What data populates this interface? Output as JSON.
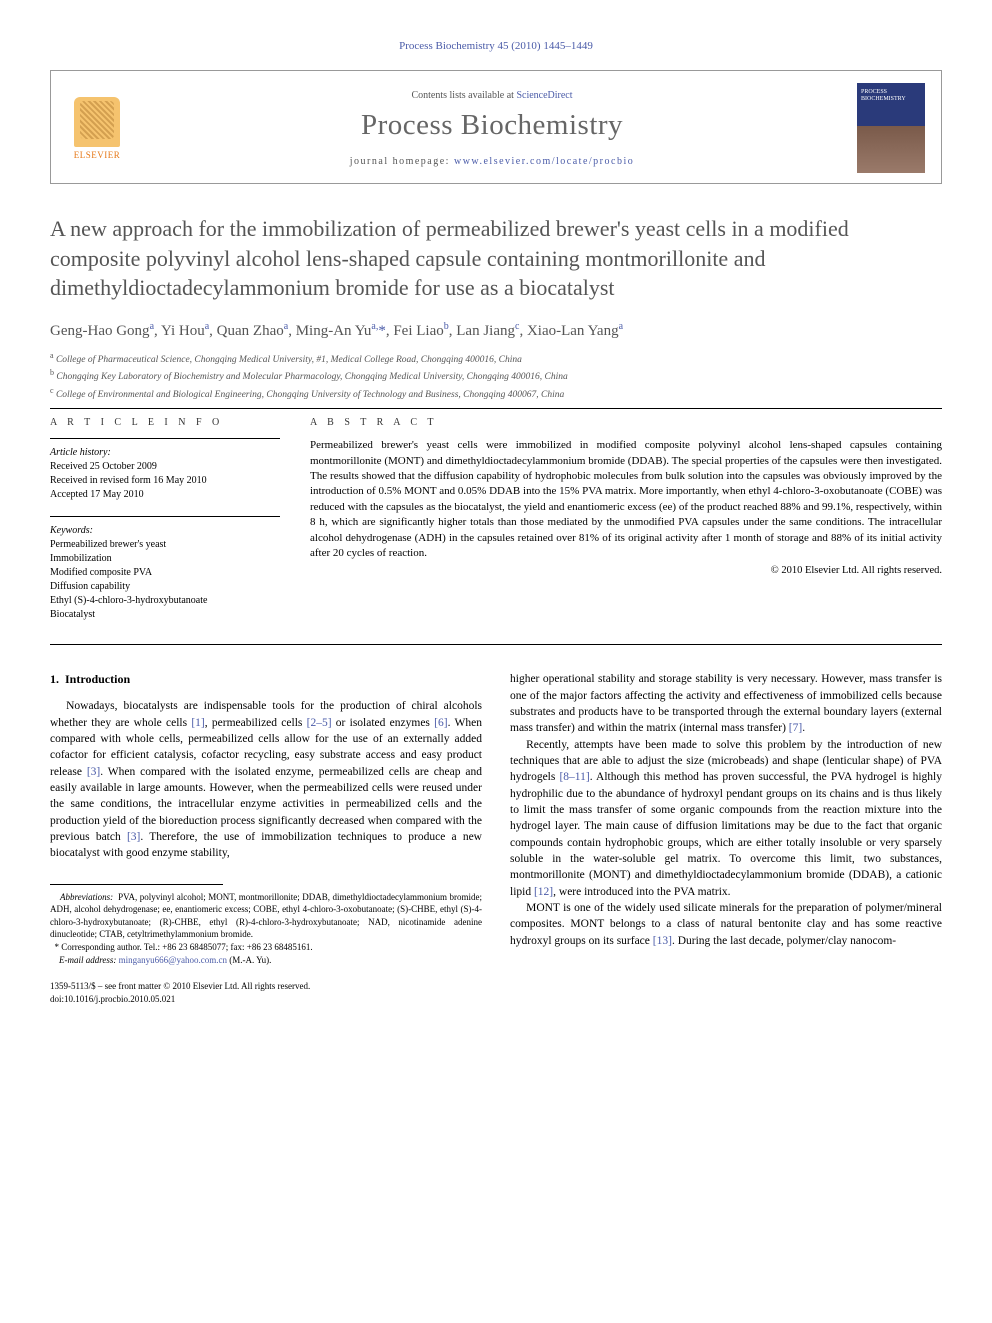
{
  "citation": "Process Biochemistry 45 (2010) 1445–1449",
  "header": {
    "contents_prefix": "Contents lists available at ",
    "contents_link": "ScienceDirect",
    "journal": "Process Biochemistry",
    "homepage_prefix": "journal homepage: ",
    "homepage_url": "www.elsevier.com/locate/procbio",
    "publisher_label": "ELSEVIER",
    "cover_caption": "PROCESS BIOCHEMISTRY"
  },
  "title": "A new approach for the immobilization of permeabilized brewer's yeast cells in a modified composite polyvinyl alcohol lens-shaped capsule containing montmorillonite and dimethyldioctadecylammonium bromide for use as a biocatalyst",
  "authors_html": "Geng-Hao Gong<sup>a</sup>, Yi Hou<sup>a</sup>, Quan Zhao<sup>a</sup>, Ming-An Yu<sup>a,</sup><span class='star'>*</span>, Fei Liao<sup>b</sup>, Lan Jiang<sup>c</sup>, Xiao-Lan Yang<sup>a</sup>",
  "affiliations": {
    "a": "College of Pharmaceutical Science, Chongqing Medical University, #1, Medical College Road, Chongqing 400016, China",
    "b": "Chongqing Key Laboratory of Biochemistry and Molecular Pharmacology, Chongqing Medical University, Chongqing 400016, China",
    "c": "College of Environmental and Biological Engineering, Chongqing University of Technology and Business, Chongqing 400067, China"
  },
  "info": {
    "head": "A R T I C L E   I N F O",
    "history_head": "Article history:",
    "history": [
      "Received 25 October 2009",
      "Received in revised form 16 May 2010",
      "Accepted 17 May 2010"
    ],
    "keywords_head": "Keywords:",
    "keywords": [
      "Permeabilized brewer's yeast",
      "Immobilization",
      "Modified composite PVA",
      "Diffusion capability",
      "Ethyl (S)-4-chloro-3-hydroxybutanoate",
      "Biocatalyst"
    ]
  },
  "abstract": {
    "head": "A B S T R A C T",
    "text": "Permeabilized brewer's yeast cells were immobilized in modified composite polyvinyl alcohol lens-shaped capsules containing montmorillonite (MONT) and dimethyldioctadecylammonium bromide (DDAB). The special properties of the capsules were then investigated. The results showed that the diffusion capability of hydrophobic molecules from bulk solution into the capsules was obviously improved by the introduction of 0.5% MONT and 0.05% DDAB into the 15% PVA matrix. More importantly, when ethyl 4-chloro-3-oxobutanoate (COBE) was reduced with the capsules as the biocatalyst, the yield and enantiomeric excess (ee) of the product reached 88% and 99.1%, respectively, within 8 h, which are significantly higher totals than those mediated by the unmodified PVA capsules under the same conditions. The intracellular alcohol dehydrogenase (ADH) in the capsules retained over 81% of its original activity after 1 month of storage and 88% of its initial activity after 20 cycles of reaction.",
    "copyright": "© 2010 Elsevier Ltd. All rights reserved."
  },
  "body": {
    "section_num": "1.",
    "section_title": "Introduction",
    "left_p1": "Nowadays, biocatalysts are indispensable tools for the production of chiral alcohols whether they are whole cells [1], permeabilized cells [2–5] or isolated enzymes [6]. When compared with whole cells, permeabilized cells allow for the use of an externally added cofactor for efficient catalysis, cofactor recycling, easy substrate access and easy product release [3]. When compared with the isolated enzyme, permeabilized cells are cheap and easily available in large amounts. However, when the permeabilized cells were reused under the same conditions, the intracellular enzyme activities in permeabilized cells and the production yield of the bioreduction process significantly decreased when compared with the previous batch [3]. Therefore, the use of immobilization techniques to produce a new biocatalyst with good enzyme stability,",
    "right_p1": "higher operational stability and storage stability is very necessary. However, mass transfer is one of the major factors affecting the activity and effectiveness of immobilized cells because substrates and products have to be transported through the external boundary layers (external mass transfer) and within the matrix (internal mass transfer) [7].",
    "right_p2": "Recently, attempts have been made to solve this problem by the introduction of new techniques that are able to adjust the size (microbeads) and shape (lenticular shape) of PVA hydrogels [8–11]. Although this method has proven successful, the PVA hydrogel is highly hydrophilic due to the abundance of hydroxyl pendant groups on its chains and is thus likely to limit the mass transfer of some organic compounds from the reaction mixture into the hydrogel layer. The main cause of diffusion limitations may be due to the fact that organic compounds contain hydrophobic groups, which are either totally insoluble or very sparsely soluble in the water-soluble gel matrix. To overcome this limit, two substances, montmorillonite (MONT) and dimethyldioctadecylammonium bromide (DDAB), a cationic lipid [12], were introduced into the PVA matrix.",
    "right_p3": "MONT is one of the widely used silicate minerals for the preparation of polymer/mineral composites. MONT belongs to a class of natural bentonite clay and has some reactive hydroxyl groups on its surface [13]. During the last decade, polymer/clay nanocom-"
  },
  "footnotes": {
    "abbrev_label": "Abbreviations:",
    "abbrev": "PVA, polyvinyl alcohol; MONT, montmorillonite; DDAB, dimethyldioctadecylammonium bromide; ADH, alcohol dehydrogenase; ee, enantiomeric excess; COBE, ethyl 4-chloro-3-oxobutanoate; (S)-CHBE, ethyl (S)-4-chloro-3-hydroxybutanoate; (R)-CHBE, ethyl (R)-4-chloro-3-hydroxybutanoate; NAD, nicotinamide adenine dinucleotide; CTAB, cetyltrimethylammonium bromide.",
    "corresp": "Corresponding author. Tel.: +86 23 68485077; fax: +86 23 68485161.",
    "email_label": "E-mail address:",
    "email": "minganyu666@yahoo.com.cn",
    "email_suffix": "(M.-A. Yu)."
  },
  "bottom": {
    "line1": "1359-5113/$ – see front matter © 2010 Elsevier Ltd. All rights reserved.",
    "line2": "doi:10.1016/j.procbio.2010.05.021"
  }
}
